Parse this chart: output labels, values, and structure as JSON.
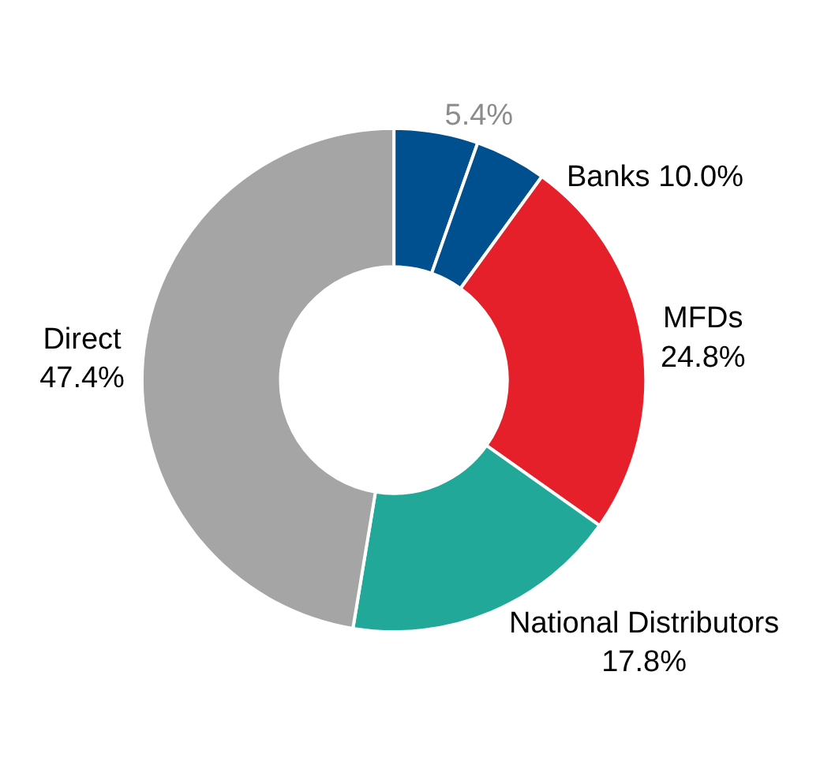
{
  "chart_data": {
    "type": "donut",
    "categories": [
      null,
      null,
      "MFDs",
      "National Distributors",
      "Direct"
    ],
    "values": [
      5.4,
      4.6,
      24.8,
      17.8,
      47.4
    ],
    "value_labels": [
      "5.4%",
      null,
      "24.8%",
      "17.8%",
      "47.4%"
    ],
    "colors": [
      "#004f8f",
      "#004f8f",
      "#e5202a",
      "#22a899",
      "#a5a5a5"
    ],
    "annotations": [
      "Banks 10.0%"
    ],
    "legend": false
  }
}
